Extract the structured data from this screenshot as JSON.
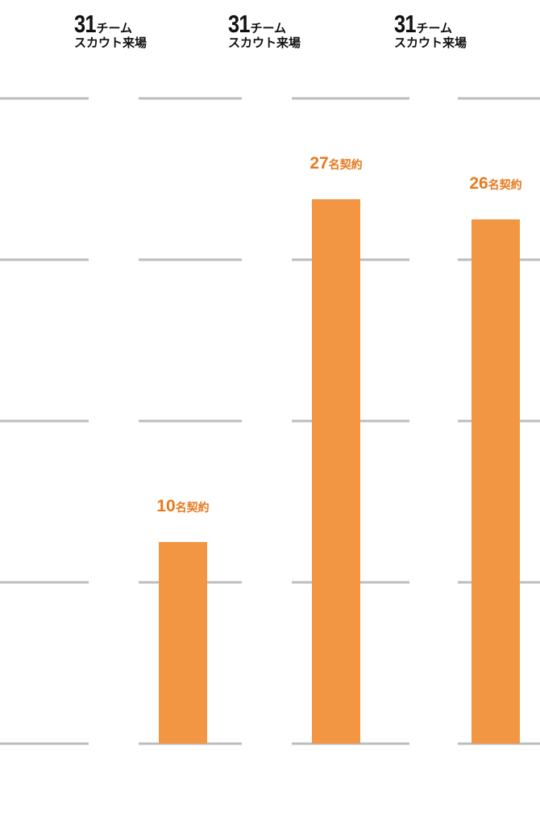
{
  "headers": [
    {
      "count": "31",
      "unit": "チーム",
      "sub": "スカウト来場"
    },
    {
      "count": "31",
      "unit": "チーム",
      "sub": "スカウト来場"
    },
    {
      "count": "31",
      "unit": "チーム",
      "sub": "スカウト来場"
    }
  ],
  "colors": {
    "bar": "#F39643",
    "label": "#E8791E",
    "grid": "#BDBDBD",
    "text": "#111111"
  },
  "chart_data": {
    "type": "bar",
    "values": [
      10,
      27,
      26
    ],
    "data_labels": [
      "10名契約",
      "27名契約",
      "26名契約"
    ],
    "ylim": [
      0,
      32
    ],
    "grid": true,
    "legend": "none"
  }
}
